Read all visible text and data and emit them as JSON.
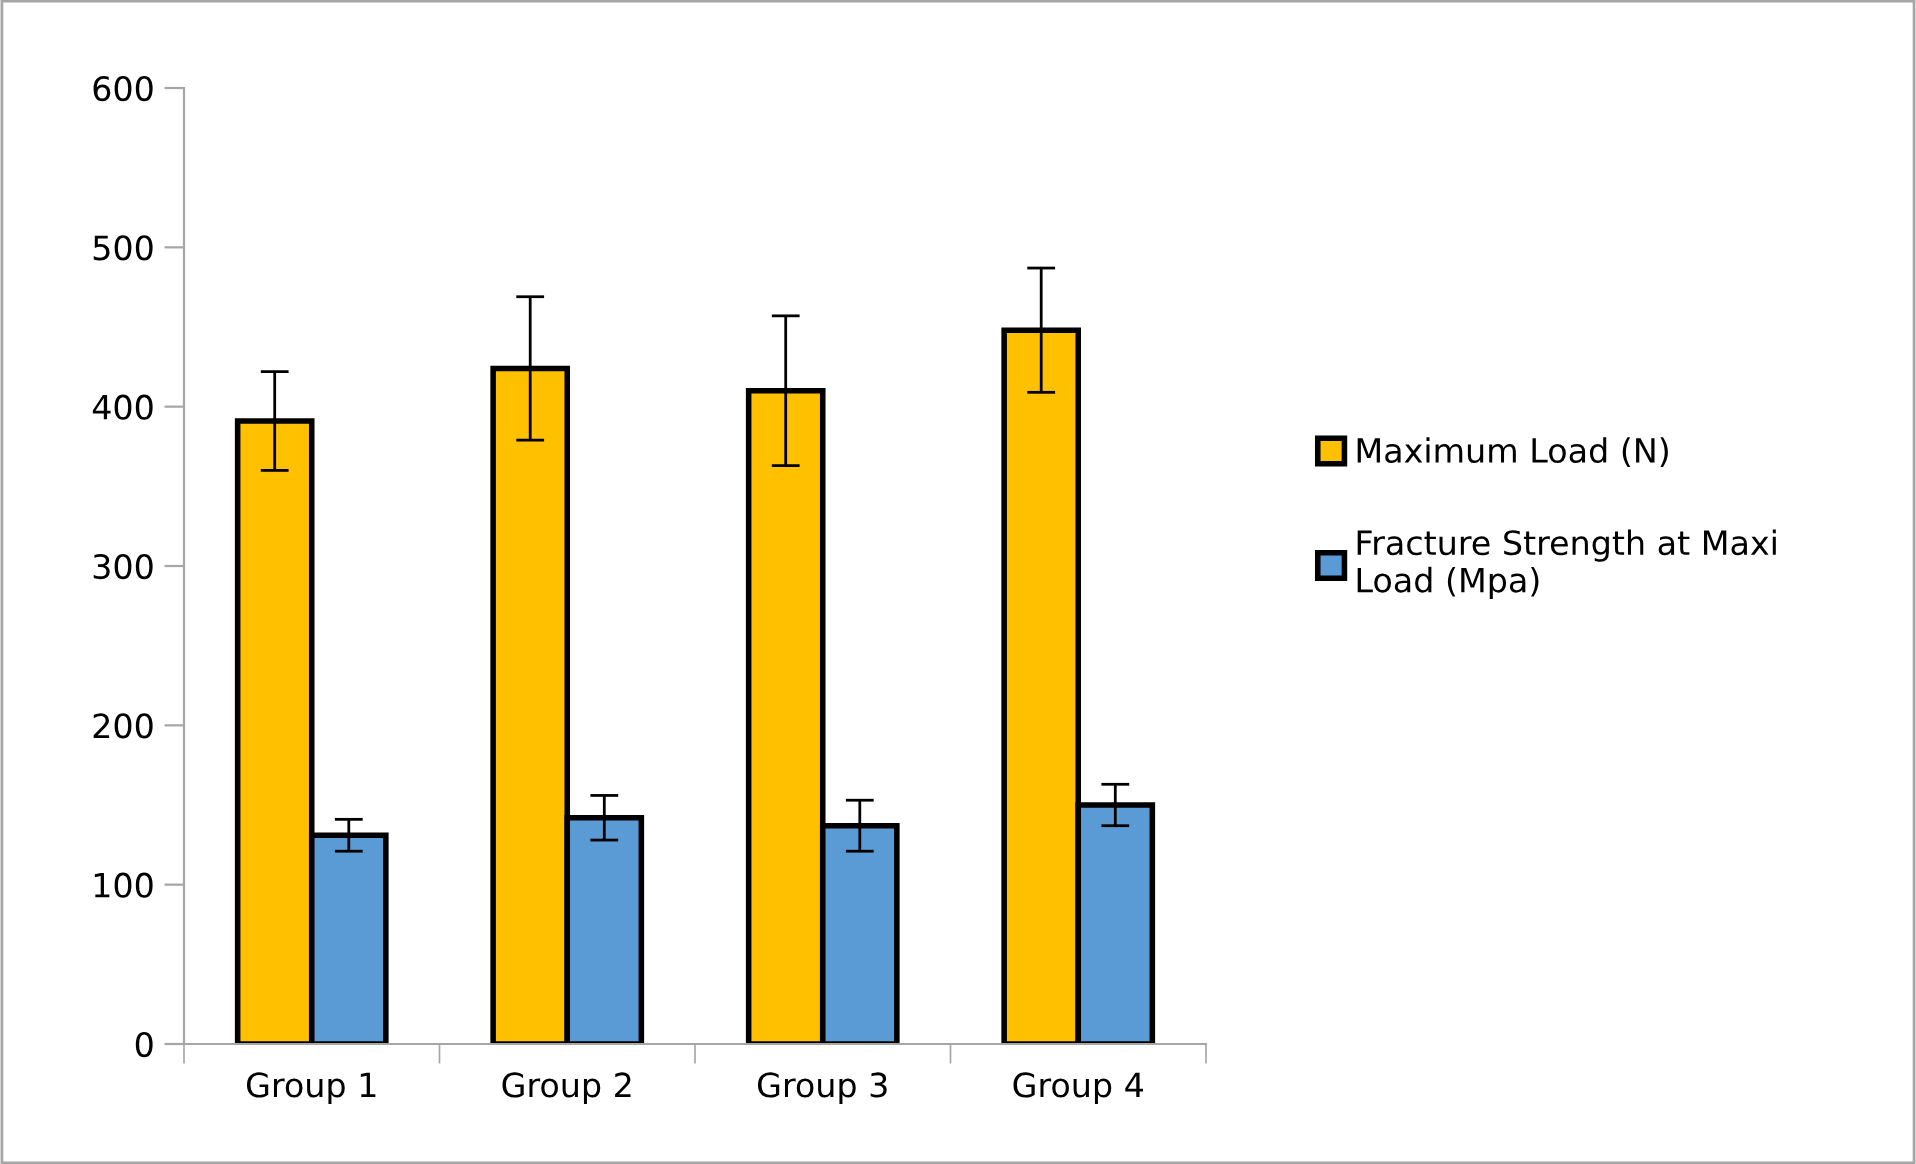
{
  "chart_data": {
    "type": "bar",
    "categories": [
      "Group 1",
      "Group 2",
      "Group 3",
      "Group 4"
    ],
    "series": [
      {
        "name": "Maximum Load (N)",
        "color": "#ffc000",
        "values": [
          391,
          424,
          410,
          448
        ],
        "errors": [
          31,
          45,
          47,
          39
        ]
      },
      {
        "name": "Fracture Strength at Maxi Load (Mpa)",
        "color": "#5b9bd5",
        "values": [
          131,
          142,
          137,
          150
        ],
        "errors": [
          10,
          14,
          16,
          13
        ]
      }
    ],
    "ylim": [
      0,
      600
    ],
    "yticks": [
      0,
      100,
      200,
      300,
      400,
      500,
      600
    ],
    "grid": false,
    "legend": "right"
  }
}
